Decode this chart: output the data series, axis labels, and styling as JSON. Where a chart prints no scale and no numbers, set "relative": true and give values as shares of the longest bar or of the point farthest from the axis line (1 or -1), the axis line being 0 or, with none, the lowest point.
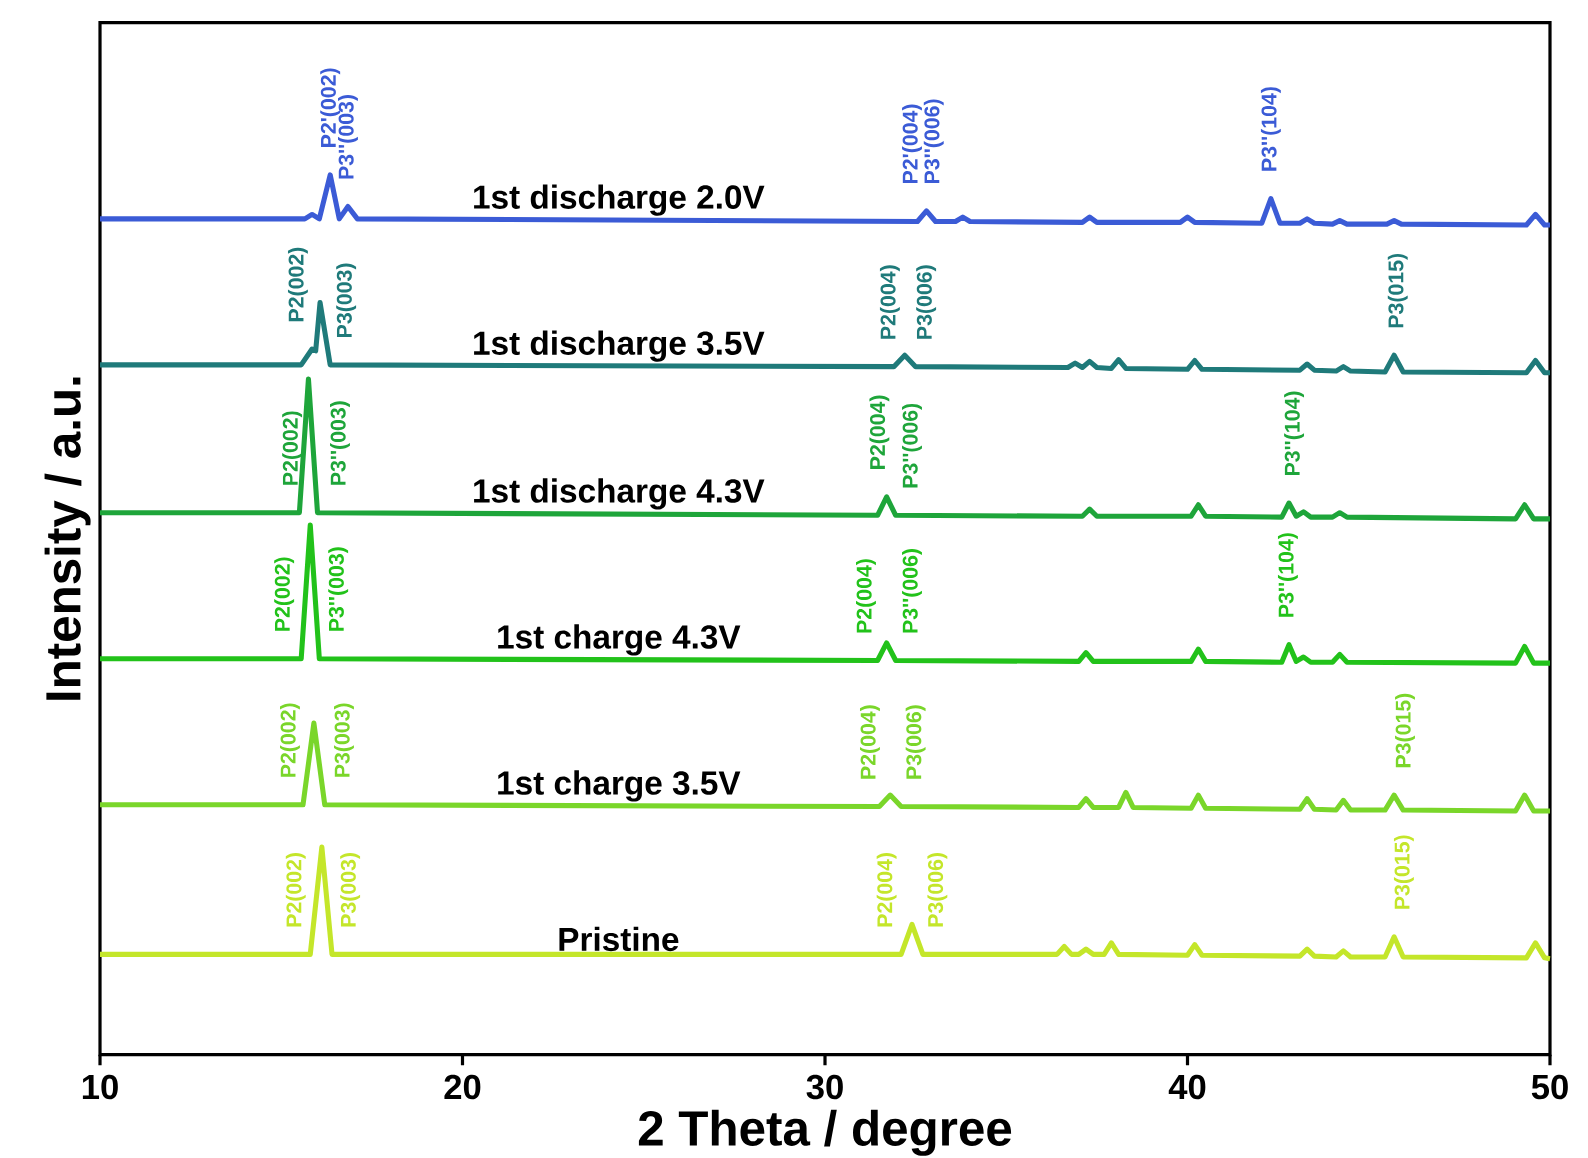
{
  "chart_data": {
    "type": "line",
    "relative": true,
    "xlabel": "2 Theta / degree",
    "ylabel": "Intensity / a.u.",
    "xlim": [
      10,
      50
    ],
    "xticks": [
      10,
      20,
      30,
      40,
      50
    ],
    "grid": false,
    "legend": false,
    "line_style": "solid",
    "series": [
      {
        "name": "Pristine",
        "color": "#c4e62a",
        "x": [
          10,
          15.8,
          16.12,
          16.4,
          32.1,
          32.4,
          32.7,
          36.4,
          36.6,
          36.8,
          37.0,
          37.2,
          37.4,
          37.7,
          37.9,
          38.1,
          40.0,
          40.2,
          40.4,
          43.1,
          43.3,
          43.5,
          44.1,
          44.3,
          44.5,
          45.45,
          45.7,
          45.95,
          49.35,
          49.6,
          49.85,
          50
        ],
        "values": [
          0.114,
          0.114,
          0.236,
          0.114,
          0.114,
          0.148,
          0.114,
          0.114,
          0.123,
          0.114,
          0.114,
          0.12,
          0.114,
          0.114,
          0.127,
          0.114,
          0.113,
          0.125,
          0.113,
          0.112,
          0.12,
          0.112,
          0.111,
          0.118,
          0.111,
          0.111,
          0.134,
          0.111,
          0.11,
          0.127,
          0.11,
          0.109
        ]
      },
      {
        "name": "1st charge 3.5V",
        "color": "#7ad62a",
        "x": [
          10,
          15.6,
          15.9,
          16.2,
          31.5,
          31.8,
          32.1,
          37.0,
          37.2,
          37.4,
          38.1,
          38.3,
          38.5,
          40.1,
          40.3,
          40.5,
          43.1,
          43.3,
          43.5,
          44.1,
          44.3,
          44.5,
          45.45,
          45.7,
          45.95,
          49.05,
          49.3,
          49.55,
          50
        ],
        "values": [
          0.284,
          0.284,
          0.377,
          0.284,
          0.282,
          0.295,
          0.282,
          0.281,
          0.291,
          0.281,
          0.281,
          0.298,
          0.281,
          0.28,
          0.295,
          0.28,
          0.279,
          0.291,
          0.279,
          0.278,
          0.289,
          0.278,
          0.278,
          0.295,
          0.278,
          0.277,
          0.295,
          0.277,
          0.277
        ]
      },
      {
        "name": "1st charge 4.3V",
        "color": "#22c21a",
        "x": [
          10,
          15.55,
          15.8,
          16.05,
          31.45,
          31.7,
          31.95,
          37.0,
          37.2,
          37.4,
          40.1,
          40.3,
          40.5,
          42.6,
          42.8,
          43.0,
          43.2,
          43.4,
          44.0,
          44.2,
          44.4,
          49.05,
          49.3,
          49.55,
          50
        ],
        "values": [
          0.45,
          0.45,
          0.602,
          0.45,
          0.448,
          0.468,
          0.448,
          0.447,
          0.457,
          0.447,
          0.447,
          0.461,
          0.447,
          0.446,
          0.466,
          0.447,
          0.452,
          0.446,
          0.446,
          0.455,
          0.446,
          0.445,
          0.464,
          0.445,
          0.445
        ]
      },
      {
        "name": "1st discharge 4.3V",
        "color": "#1ea53a",
        "x": [
          10,
          15.5,
          15.75,
          16.0,
          31.45,
          31.7,
          31.95,
          37.1,
          37.3,
          37.5,
          40.1,
          40.3,
          40.5,
          42.6,
          42.8,
          43.0,
          43.2,
          43.4,
          44.0,
          44.2,
          44.4,
          49.05,
          49.3,
          49.55,
          50
        ],
        "values": [
          0.616,
          0.616,
          0.768,
          0.616,
          0.613,
          0.634,
          0.613,
          0.612,
          0.62,
          0.612,
          0.612,
          0.625,
          0.612,
          0.611,
          0.627,
          0.612,
          0.617,
          0.611,
          0.611,
          0.616,
          0.611,
          0.609,
          0.625,
          0.609,
          0.609
        ]
      },
      {
        "name": "1st discharge 3.5V",
        "color": "#1f7a7a",
        "x": [
          10,
          15.55,
          15.85,
          15.95,
          16.07,
          16.35,
          31.9,
          32.2,
          32.5,
          36.7,
          36.9,
          37.1,
          37.3,
          37.5,
          37.9,
          38.1,
          38.3,
          40.0,
          40.2,
          40.4,
          43.1,
          43.3,
          43.5,
          44.1,
          44.3,
          44.5,
          45.45,
          45.7,
          45.95,
          49.35,
          49.6,
          49.85,
          50
        ],
        "values": [
          0.784,
          0.784,
          0.802,
          0.8,
          0.855,
          0.784,
          0.782,
          0.795,
          0.782,
          0.781,
          0.786,
          0.781,
          0.788,
          0.781,
          0.78,
          0.79,
          0.78,
          0.779,
          0.789,
          0.779,
          0.778,
          0.785,
          0.778,
          0.777,
          0.782,
          0.777,
          0.776,
          0.795,
          0.776,
          0.775,
          0.789,
          0.775,
          0.775
        ]
      },
      {
        "name": "1st discharge 2.0V",
        "color": "#3b5bd6",
        "x": [
          10,
          15.65,
          15.85,
          16.05,
          16.35,
          16.6,
          16.84,
          17.1,
          32.55,
          32.8,
          33.05,
          33.6,
          33.8,
          34.0,
          37.1,
          37.3,
          37.5,
          39.8,
          40.0,
          40.2,
          42.05,
          42.3,
          42.55,
          43.1,
          43.3,
          43.5,
          44.0,
          44.2,
          44.4,
          45.5,
          45.7,
          45.9,
          49.35,
          49.6,
          49.85,
          50
        ],
        "values": [
          0.95,
          0.95,
          0.955,
          0.95,
          1,
          0.95,
          0.964,
          0.95,
          0.947,
          0.959,
          0.947,
          0.947,
          0.952,
          0.947,
          0.946,
          0.952,
          0.946,
          0.946,
          0.952,
          0.946,
          0.945,
          0.973,
          0.945,
          0.945,
          0.95,
          0.945,
          0.944,
          0.948,
          0.944,
          0.944,
          0.948,
          0.944,
          0.943,
          0.955,
          0.943,
          0.943
        ]
      }
    ],
    "annotations": [
      {
        "text": "P2'(002)",
        "x": 16.35,
        "y": 1
      },
      {
        "text": "P3''(003)",
        "x": 16.84,
        "y": 0.964
      },
      {
        "text": "P2'(004)",
        "x": 32.4,
        "y": 0.947
      },
      {
        "text": "P3''(006)",
        "x": 33.0,
        "y": 0.949
      },
      {
        "text": "P3''(104)",
        "x": 42.3,
        "y": 0.973
      },
      {
        "text": "P2(002)",
        "x": 15.46,
        "y": 0.784
      },
      {
        "text": "P3(003)",
        "x": 16.79,
        "y": 0.784
      },
      {
        "text": "P2(004)",
        "x": 31.79,
        "y": 0.782
      },
      {
        "text": "P3(006)",
        "x": 32.79,
        "y": 0.782
      },
      {
        "text": "P3(015)",
        "x": 45.8,
        "y": 0.787
      },
      {
        "text": "P2(002)",
        "x": 15.3,
        "y": 0.616
      },
      {
        "text": "P3''(003)",
        "x": 16.62,
        "y": 0.616
      },
      {
        "text": "P2(004)",
        "x": 31.5,
        "y": 0.617
      },
      {
        "text": "P3''(006)",
        "x": 32.4,
        "y": 0.613
      },
      {
        "text": "P3''(104)",
        "x": 42.94,
        "y": 0.617
      },
      {
        "text": "P2(002)",
        "x": 15.08,
        "y": 0.45
      },
      {
        "text": "P3''(003)",
        "x": 16.57,
        "y": 0.45
      },
      {
        "text": "P2(004)",
        "x": 31.13,
        "y": 0.448
      },
      {
        "text": "P3''(006)",
        "x": 32.4,
        "y": 0.448
      },
      {
        "text": "P3''(104)",
        "x": 42.77,
        "y": 0.463
      },
      {
        "text": "P2(002)",
        "x": 15.24,
        "y": 0.284
      },
      {
        "text": "P3(003)",
        "x": 16.73,
        "y": 0.284
      },
      {
        "text": "P2(004)",
        "x": 31.24,
        "y": 0.282
      },
      {
        "text": "P3(006)",
        "x": 32.5,
        "y": 0.282
      },
      {
        "text": "P3(015)",
        "x": 46.0,
        "y": 0.278
      },
      {
        "text": "P2(002)",
        "x": 15.4,
        "y": 0.114
      },
      {
        "text": "P3(003)",
        "x": 16.9,
        "y": 0.114
      },
      {
        "text": "P2(004)",
        "x": 31.7,
        "y": 0.114
      },
      {
        "text": "P3(006)",
        "x": 33.1,
        "y": 0.114
      },
      {
        "text": "P3(015)",
        "x": 45.97,
        "y": 0.111
      }
    ]
  }
}
